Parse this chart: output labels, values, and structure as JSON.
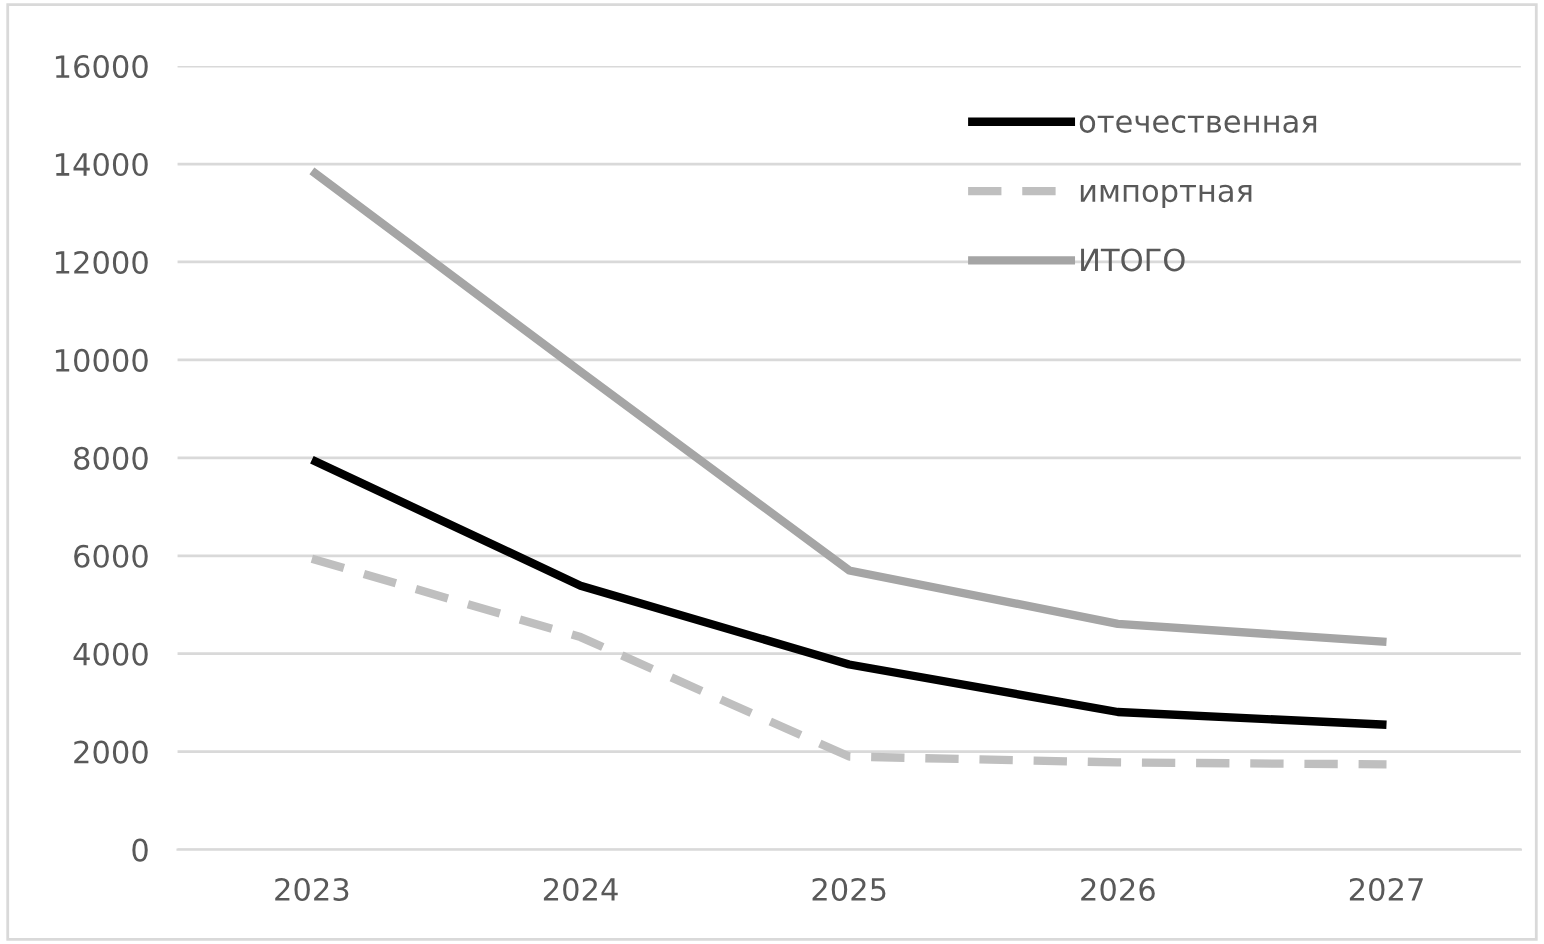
{
  "chart_data": {
    "type": "line",
    "categories": [
      "2023",
      "2024",
      "2025",
      "2026",
      "2027"
    ],
    "series": [
      {
        "name": "отечественная",
        "color": "#000000",
        "line_style": "solid",
        "values": [
          7960,
          5390,
          3780,
          2810,
          2550
        ]
      },
      {
        "name": "импортная",
        "color": "#bfbfbf",
        "line_style": "dashed",
        "values": [
          5940,
          4340,
          1900,
          1780,
          1740
        ]
      },
      {
        "name": "ИТОГО",
        "color": "#a5a5a5",
        "line_style": "solid",
        "values": [
          13860,
          9760,
          5700,
          4610,
          4240
        ]
      }
    ],
    "ylim": [
      0,
      16000
    ],
    "yticks": [
      0,
      2000,
      4000,
      6000,
      8000,
      10000,
      12000,
      14000,
      16000
    ],
    "grid": "y",
    "legend": "top right",
    "marker": "none"
  }
}
